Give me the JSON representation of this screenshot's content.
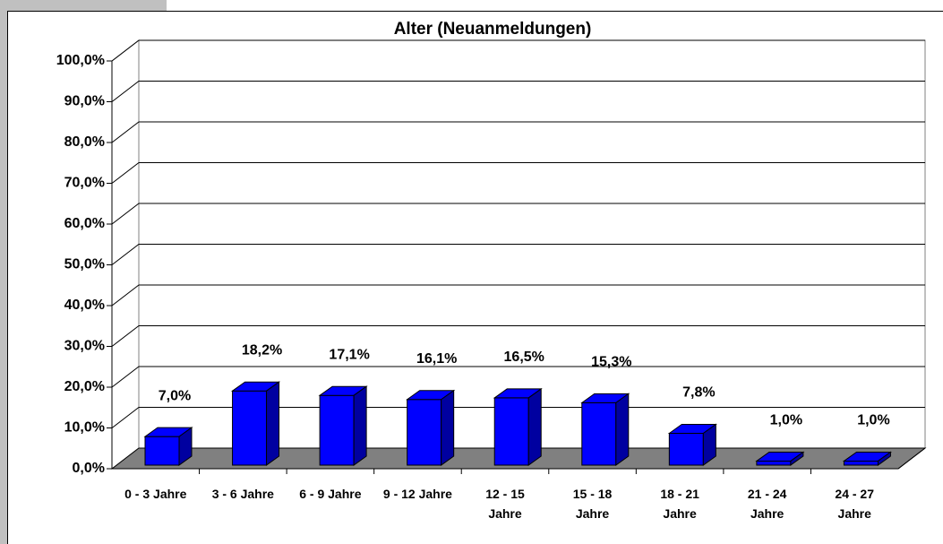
{
  "chart_data": {
    "type": "bar3d",
    "title": "Alter (Neuanmeldungen)",
    "categories": [
      "0 - 3 Jahre",
      "3 - 6 Jahre",
      "6 - 9 Jahre",
      "9 - 12 Jahre",
      "12 - 15 Jahre",
      "15 - 18 Jahre",
      "18 - 21 Jahre",
      "21 - 24 Jahre",
      "24 - 27 Jahre"
    ],
    "values": [
      7.0,
      18.2,
      17.1,
      16.1,
      16.5,
      15.3,
      7.8,
      1.0,
      1.0
    ],
    "value_labels": [
      "7,0%",
      "18,2%",
      "17,1%",
      "16,1%",
      "16,5%",
      "15,3%",
      "7,8%",
      "1,0%",
      "1,0%"
    ],
    "color": "#0000ff",
    "ylim": [
      0,
      100
    ],
    "yticks": [
      {
        "value": 0,
        "label": "0,0%"
      },
      {
        "value": 10,
        "label": "10,0%"
      },
      {
        "value": 20,
        "label": "20,0%"
      },
      {
        "value": 30,
        "label": "30,0%"
      },
      {
        "value": 40,
        "label": "40,0%"
      },
      {
        "value": 50,
        "label": "50,0%"
      },
      {
        "value": 60,
        "label": "60,0%"
      },
      {
        "value": 70,
        "label": "70,0%"
      },
      {
        "value": 80,
        "label": "80,0%"
      },
      {
        "value": 90,
        "label": "90,0%"
      },
      {
        "value": 100,
        "label": "100,0%"
      }
    ],
    "grid": true
  }
}
